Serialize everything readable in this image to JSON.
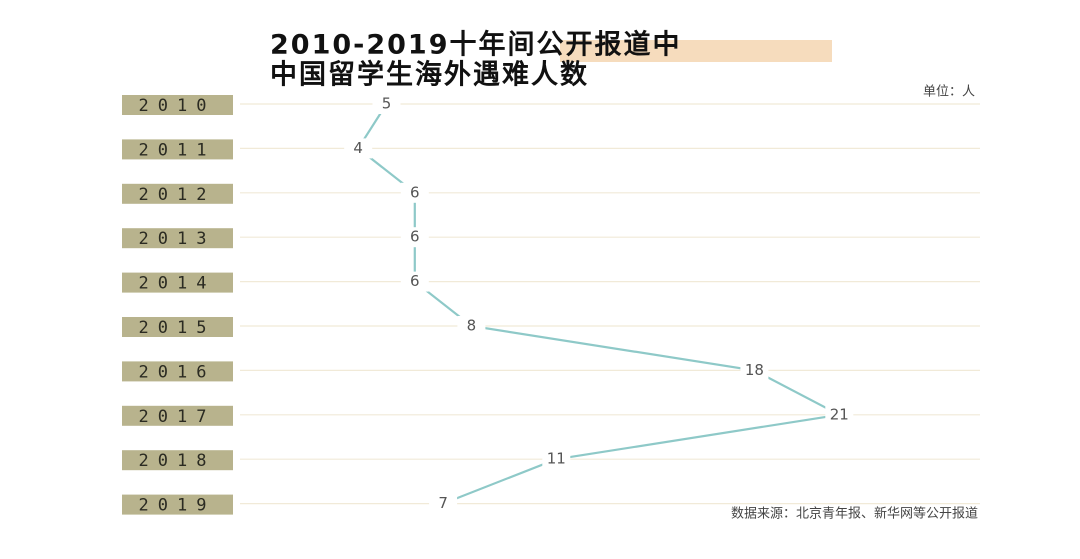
{
  "chart_data": {
    "type": "line",
    "title": [
      "2010-2019十年间公开报道中",
      "中国留学生海外遇难人数"
    ],
    "unit_label": "单位：人",
    "source": "数据来源：北京青年报、新华网等公开报道",
    "categories": [
      "2010",
      "2011",
      "2012",
      "2013",
      "2014",
      "2015",
      "2016",
      "2017",
      "2018",
      "2019"
    ],
    "values": [
      5,
      4,
      6,
      6,
      6,
      8,
      18,
      21,
      11,
      7
    ],
    "color": "#8ec9c8",
    "category_box_color": "#b8b38d",
    "grid": true
  }
}
